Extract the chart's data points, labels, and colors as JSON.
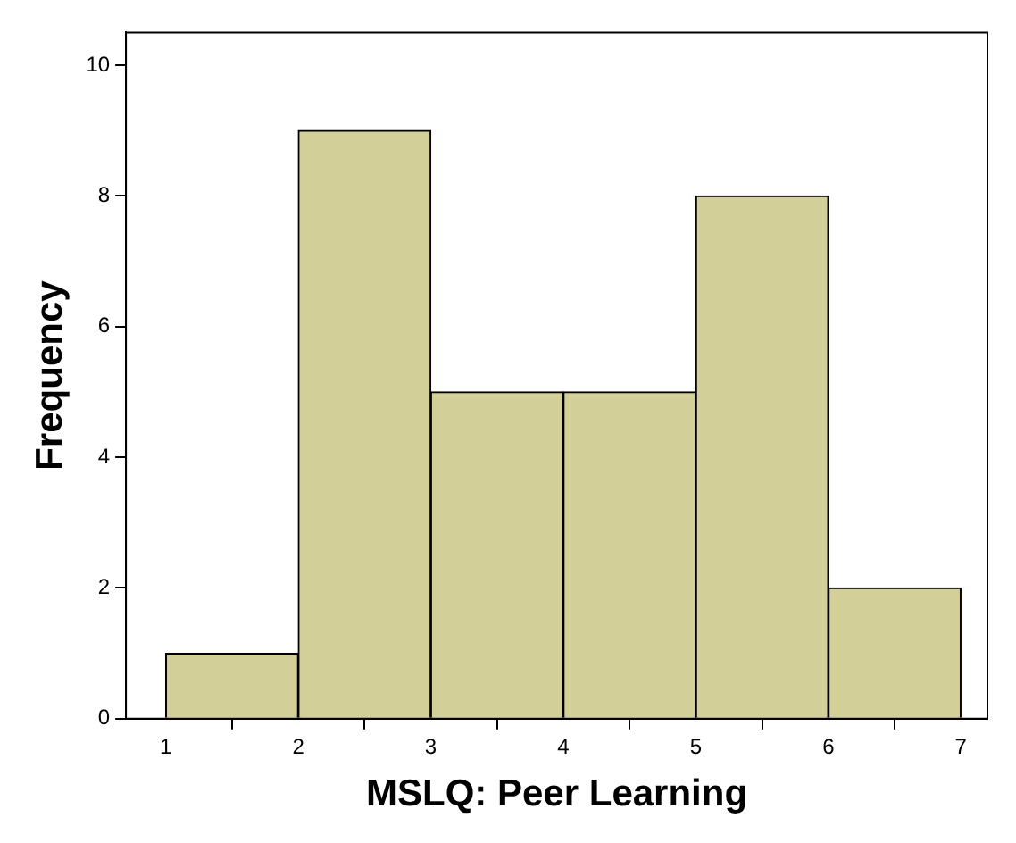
{
  "chart_data": {
    "type": "histogram",
    "xlabel": "MSLQ: Peer Learning",
    "ylabel": "Frequency",
    "bins": [
      1,
      2,
      3,
      4,
      5,
      6,
      7
    ],
    "values": [
      1,
      9,
      5,
      5,
      8,
      2
    ],
    "color": "#d3cf98",
    "xlim": [
      0.7,
      7.2
    ],
    "xticks": [
      1,
      2,
      3,
      4,
      5,
      6,
      7
    ],
    "ylim": [
      0,
      10.5
    ],
    "yticks": [
      0,
      2,
      4,
      6,
      8,
      10
    ],
    "grid": false,
    "legend": false
  }
}
